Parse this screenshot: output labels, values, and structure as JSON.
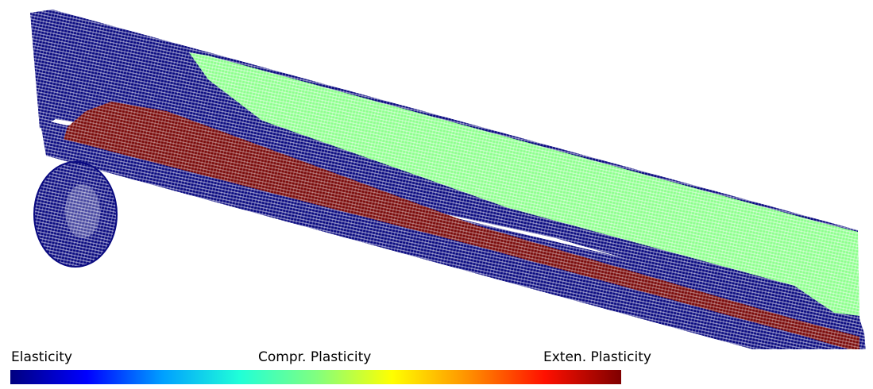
{
  "legend": {
    "labels": {
      "elasticity": "Elasticity",
      "compression_plasticity": "Compr. Plasticity",
      "extension_plasticity": "Exten. Plasticity"
    },
    "colorbar_stops": [
      "#00007f",
      "#0000ff",
      "#00a0ff",
      "#20ffd8",
      "#80ff80",
      "#ffff00",
      "#ff9000",
      "#ff1000",
      "#7f0000"
    ]
  },
  "regions": {
    "elasticity": {
      "color": "#0a0a80"
    },
    "compression_plasticity": {
      "color": "#90ff90"
    },
    "extension_plasticity": {
      "color": "#7a0a0a"
    }
  }
}
